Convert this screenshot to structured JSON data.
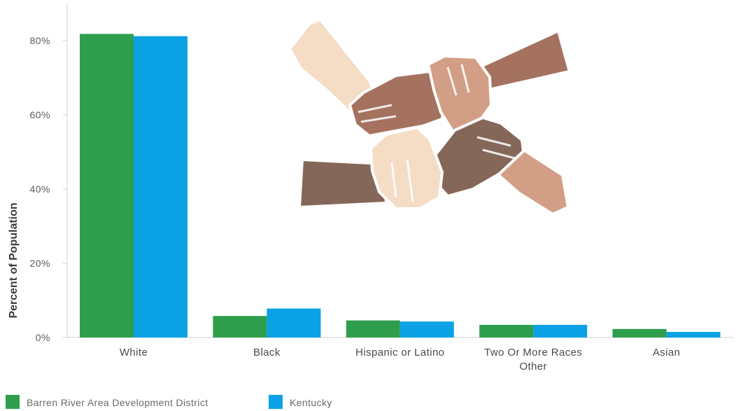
{
  "chart_data": {
    "type": "bar",
    "title": "",
    "xlabel": "",
    "ylabel": "Percent of Population",
    "ylim": [
      0,
      90
    ],
    "yticks": [
      0,
      20,
      40,
      60,
      80
    ],
    "ytick_labels": [
      "0%",
      "20%",
      "40%",
      "60%",
      "80%"
    ],
    "categories": [
      "White",
      "Black",
      "Hispanic or Latino",
      "Two Or More Races Other",
      "Asian"
    ],
    "category_lines": [
      [
        "White"
      ],
      [
        "Black"
      ],
      [
        "Hispanic or Latino"
      ],
      [
        "Two Or More Races",
        "Other"
      ],
      [
        "Asian"
      ]
    ],
    "series": [
      {
        "name": "Barren River Area Development District",
        "color": "#2e9e4d",
        "values": [
          81.8,
          5.8,
          4.6,
          3.4,
          2.3
        ]
      },
      {
        "name": "Kentucky",
        "color": "#0aa2e4",
        "values": [
          81.2,
          7.8,
          4.3,
          3.4,
          1.5
        ]
      }
    ],
    "legend": "bottom-left",
    "grid": false
  },
  "illustration": {
    "icon": "hands-unity-icon",
    "colors": [
      "#f5dcc5",
      "#a5725f",
      "#d29f86",
      "#856759"
    ]
  }
}
